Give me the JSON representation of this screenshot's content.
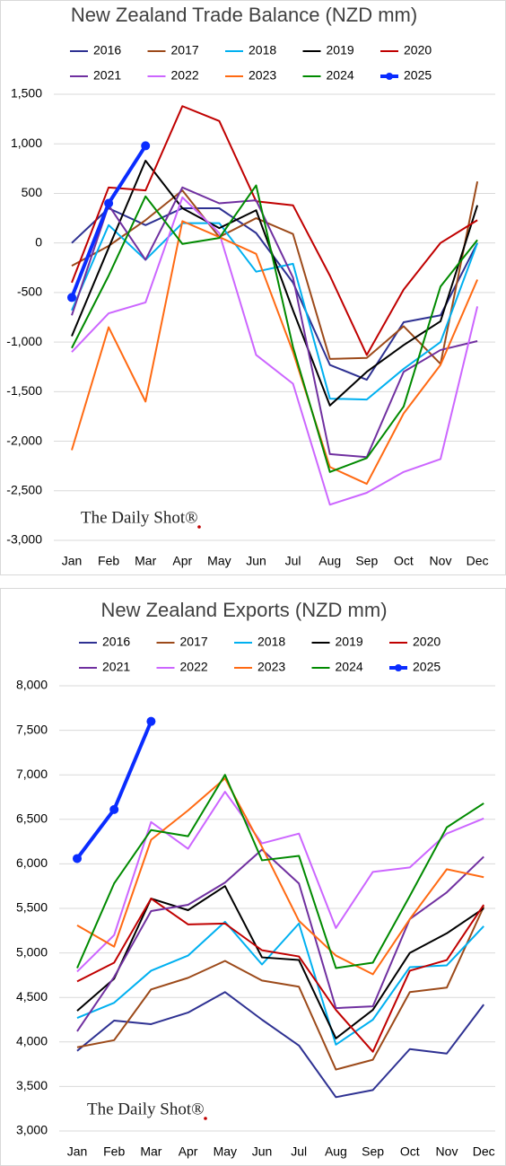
{
  "chart_data": [
    {
      "type": "line",
      "title": "New Zealand Trade Balance (NZD mm)",
      "watermark": "The Daily Shot®",
      "categories": [
        "Jan",
        "Feb",
        "Mar",
        "Apr",
        "May",
        "Jun",
        "Jul",
        "Aug",
        "Sep",
        "Oct",
        "Nov",
        "Dec"
      ],
      "ylim": [
        -3000,
        1500
      ],
      "yticks": [
        {
          "value": -3000,
          "label": "-3,000"
        },
        {
          "value": -2500,
          "label": "-2,500"
        },
        {
          "value": -2000,
          "label": "-2,000"
        },
        {
          "value": -1500,
          "label": "-1,500"
        },
        {
          "value": -1000,
          "label": "-1,000"
        },
        -500,
        0,
        500,
        {
          "value": 1000,
          "label": "1,000"
        },
        {
          "value": 1500,
          "label": "1,500"
        }
      ],
      "grid": true,
      "series": [
        {
          "name": "2016",
          "color": "#2e3192",
          "values": [
            0,
            350,
            180,
            350,
            350,
            100,
            -400,
            -1230,
            -1380,
            -800,
            -730,
            0
          ]
        },
        {
          "name": "2017",
          "color": "#9c4a1a",
          "values": [
            -230,
            -30,
            230,
            530,
            60,
            250,
            90,
            -1170,
            -1160,
            -840,
            -1220,
            620
          ]
        },
        {
          "name": "2018",
          "color": "#00b0f0",
          "values": [
            -680,
            180,
            -170,
            200,
            200,
            -290,
            -210,
            -1570,
            -1580,
            -1270,
            -1000,
            0
          ]
        },
        {
          "name": "2019",
          "color": "#000000",
          "values": [
            -940,
            -50,
            830,
            350,
            150,
            330,
            -680,
            -1640,
            -1300,
            -1030,
            -790,
            380
          ]
        },
        {
          "name": "2020",
          "color": "#c00000",
          "values": [
            -400,
            560,
            530,
            1380,
            1230,
            420,
            380,
            -330,
            -1130,
            -470,
            0,
            230
          ]
        },
        {
          "name": "2021",
          "color": "#7030a0",
          "values": [
            -730,
            380,
            -170,
            560,
            400,
            430,
            -350,
            -2130,
            -2160,
            -1300,
            -1080,
            -990
          ]
        },
        {
          "name": "2022",
          "color": "#cc66ff",
          "values": [
            -1100,
            -710,
            -600,
            460,
            100,
            -1130,
            -1420,
            -2640,
            -2520,
            -2310,
            -2180,
            -640
          ]
        },
        {
          "name": "2023",
          "color": "#ff6a13",
          "values": [
            -2090,
            -850,
            -1600,
            220,
            60,
            -110,
            -1100,
            -2260,
            -2430,
            -1720,
            -1230,
            -370
          ]
        },
        {
          "name": "2024",
          "color": "#008a00",
          "values": [
            -1060,
            -330,
            470,
            -10,
            50,
            580,
            -1050,
            -2310,
            -2170,
            -1650,
            -440,
            30
          ]
        },
        {
          "name": "2025",
          "color": "#0a2cff",
          "values": [
            -550,
            400,
            980,
            null,
            null,
            null,
            null,
            null,
            null,
            null,
            null,
            null
          ]
        }
      ]
    },
    {
      "type": "line",
      "title": "New Zealand Exports (NZD mm)",
      "watermark": "The Daily Shot®",
      "categories": [
        "Jan",
        "Feb",
        "Mar",
        "Apr",
        "May",
        "Jun",
        "Jul",
        "Aug",
        "Sep",
        "Oct",
        "Nov",
        "Dec"
      ],
      "ylim": [
        3000,
        8000
      ],
      "yticks": [
        {
          "value": 3000,
          "label": "3,000"
        },
        {
          "value": 3500,
          "label": "3,500"
        },
        {
          "value": 4000,
          "label": "4,000"
        },
        {
          "value": 4500,
          "label": "4,500"
        },
        {
          "value": 5000,
          "label": "5,000"
        },
        {
          "value": 5500,
          "label": "5,500"
        },
        {
          "value": 6000,
          "label": "6,000"
        },
        {
          "value": 6500,
          "label": "6,500"
        },
        {
          "value": 7000,
          "label": "7,000"
        },
        {
          "value": 7500,
          "label": "7,500"
        },
        {
          "value": 8000,
          "label": "8,000"
        }
      ],
      "grid": true,
      "series": [
        {
          "name": "2016",
          "color": "#2e3192",
          "values": [
            3900,
            4240,
            4200,
            4330,
            4560,
            4250,
            3960,
            3380,
            3460,
            3920,
            3870,
            4420
          ]
        },
        {
          "name": "2017",
          "color": "#9c4a1a",
          "values": [
            3940,
            4020,
            4590,
            4720,
            4910,
            4690,
            4620,
            3690,
            3800,
            4560,
            4610,
            5520
          ]
        },
        {
          "name": "2018",
          "color": "#00b0f0",
          "values": [
            4270,
            4440,
            4800,
            4970,
            5350,
            4870,
            5330,
            3970,
            4250,
            4840,
            4860,
            5300
          ]
        },
        {
          "name": "2019",
          "color": "#000000",
          "values": [
            4350,
            4710,
            5610,
            5480,
            5750,
            4950,
            4920,
            4040,
            4360,
            5000,
            5220,
            5500
          ]
        },
        {
          "name": "2020",
          "color": "#c00000",
          "values": [
            4680,
            4890,
            5610,
            5320,
            5330,
            5030,
            4960,
            4360,
            3890,
            4800,
            4920,
            5540
          ]
        },
        {
          "name": "2021",
          "color": "#7030a0",
          "values": [
            4120,
            4730,
            5470,
            5540,
            5790,
            6160,
            5780,
            4380,
            4400,
            5380,
            5680,
            6080
          ]
        },
        {
          "name": "2022",
          "color": "#cc66ff",
          "values": [
            4790,
            5200,
            6470,
            6170,
            6810,
            6230,
            6340,
            5280,
            5910,
            5960,
            6340,
            6510
          ]
        },
        {
          "name": "2023",
          "color": "#ff6a13",
          "values": [
            5310,
            5070,
            6270,
            6600,
            6960,
            6190,
            5360,
            4970,
            4760,
            5380,
            5940,
            5850
          ]
        },
        {
          "name": "2024",
          "color": "#008a00",
          "values": [
            4830,
            5780,
            6380,
            6310,
            7000,
            6040,
            6090,
            4830,
            4890,
            5640,
            6410,
            6680
          ]
        },
        {
          "name": "2025",
          "color": "#0a2cff",
          "values": [
            6060,
            6610,
            7600,
            null,
            null,
            null,
            null,
            null,
            null,
            null,
            null,
            null
          ]
        }
      ]
    }
  ]
}
